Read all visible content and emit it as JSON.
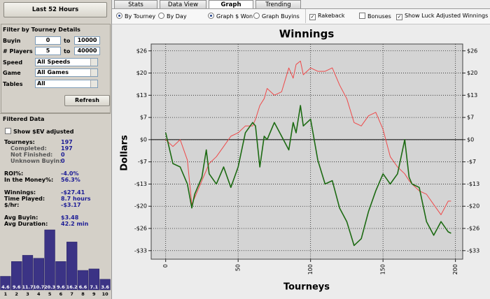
{
  "sidebar": {
    "range_button": "Last 52 Hours",
    "filter_title": "Filter by Tourney Details",
    "filters": [
      {
        "label": "Buyin",
        "from": "0",
        "to_word": "to",
        "to": "10000"
      },
      {
        "label": "# Players",
        "from": "5",
        "to_word": "to",
        "to": "40000"
      },
      {
        "label": "Speed",
        "value": "All Speeds"
      },
      {
        "label": "Game",
        "value": "All Games"
      },
      {
        "label": "Tables",
        "value": "All"
      }
    ],
    "refresh": "Refresh",
    "filtered_title": "Filtered Data",
    "ev_checkbox": "Show $EV adjusted",
    "stats": [
      [
        {
          "label": "Tourneys:",
          "value": "197"
        },
        {
          "label": "Completed:",
          "value": "197"
        },
        {
          "label": "Not Finished:",
          "value": "0"
        },
        {
          "label": "Unknown Buyin:",
          "value": "0"
        }
      ],
      [
        {
          "label": "ROI%:",
          "value": "-4.0%"
        },
        {
          "label": "In the Money%:",
          "value": "56.3%"
        }
      ],
      [
        {
          "label": "Winnings:",
          "value": "-$27.41"
        },
        {
          "label": "Time Played:",
          "value": "8.7 hours"
        },
        {
          "label": "$/hr:",
          "value": "-$3.17"
        }
      ],
      [
        {
          "label": "Avg Buyin:",
          "value": "$3.48"
        },
        {
          "label": "Avg Duration:",
          "value": "42.2 min"
        }
      ]
    ]
  },
  "tabs": [
    "Stats",
    "Data View",
    "Graph",
    "Trending"
  ],
  "options": {
    "by_tourney": "By Tourney",
    "by_day": "By Day",
    "graph_won": "Graph $ Won",
    "graph_buyins": "Graph Buyins",
    "rakeback": "Rakeback",
    "bonuses": "Bonuses",
    "luck": "Show Luck Adjusted Winnings"
  },
  "chart_data": [
    {
      "type": "line",
      "title": "Winnings",
      "x_label": "Tourneys",
      "y_label": "Dollars",
      "x": [
        0,
        5,
        10,
        15,
        18,
        20,
        25,
        28,
        30,
        35,
        40,
        45,
        50,
        55,
        60,
        62,
        65,
        68,
        70,
        75,
        80,
        85,
        88,
        90,
        93,
        95,
        100,
        105,
        110,
        115,
        120,
        125,
        130,
        135,
        140,
        145,
        150,
        155,
        160,
        165,
        168,
        170,
        175,
        180,
        185,
        190,
        195,
        197
      ],
      "series": [
        {
          "color": "#ee4a4a",
          "values": [
            0,
            -2,
            0,
            -6,
            -19,
            -17,
            -12,
            -9,
            -7,
            -5,
            -2,
            1,
            2,
            4,
            4,
            6,
            10,
            12,
            15,
            13,
            14,
            21,
            18,
            22,
            23,
            19,
            21,
            20,
            20,
            21,
            16,
            12,
            5,
            4,
            7,
            8,
            3,
            -5,
            -8,
            -10,
            -12,
            -13,
            -15,
            -16,
            -19,
            -22,
            -18,
            -18
          ]
        },
        {
          "color": "#1c6a12",
          "values": [
            2,
            -7,
            -8,
            -13,
            -20,
            -16,
            -11,
            -3,
            -10,
            -13,
            -8,
            -14,
            -8,
            2,
            5,
            4,
            -8,
            1,
            0,
            5,
            1,
            -3,
            5,
            2,
            10,
            4,
            6,
            -6,
            -13,
            -12,
            -20,
            -24,
            -31,
            -29,
            -21,
            -15,
            -10,
            -13,
            -10,
            0,
            -11,
            -13,
            -14,
            -24,
            -28,
            -24,
            -27,
            -27.41
          ]
        }
      ],
      "xlim": [
        -10,
        205
      ],
      "xticks": [
        0,
        50,
        100,
        150,
        200
      ],
      "ylim": [
        -35,
        28
      ],
      "yticks": [
        {
          "value": 26,
          "label": "$26"
        },
        {
          "value": 19.5,
          "label": "$20"
        },
        {
          "value": 13,
          "label": "$13"
        },
        {
          "value": 6.5,
          "label": "$7"
        },
        {
          "value": 0,
          "label": "$0"
        },
        {
          "value": -6.5,
          "label": "-$7"
        },
        {
          "value": -13,
          "label": "-$13"
        },
        {
          "value": -19.5,
          "label": "-$20"
        },
        {
          "value": -26,
          "label": "-$26"
        },
        {
          "value": -32.5,
          "label": "-$33"
        }
      ],
      "grid": true
    },
    {
      "type": "bar",
      "categories": [
        "1",
        "2",
        "3",
        "4",
        "5",
        "6",
        "7",
        "8",
        "9",
        "10"
      ],
      "values": [
        4.6,
        9.6,
        11.7,
        10.7,
        20.3,
        9.6,
        16.2,
        6.6,
        7.1,
        3.6
      ],
      "color": "#3b3385"
    }
  ]
}
